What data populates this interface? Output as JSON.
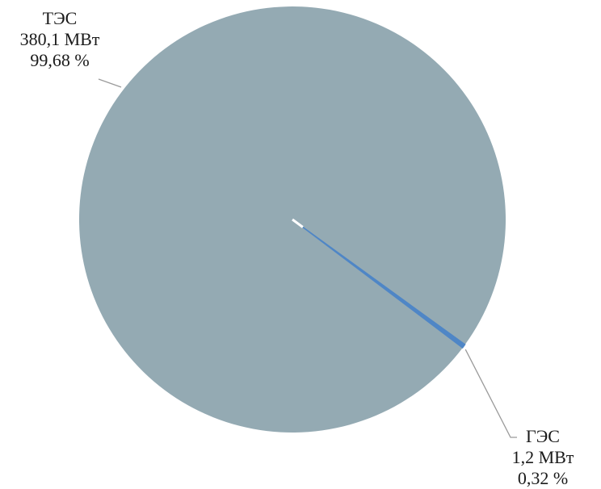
{
  "chart_data": {
    "type": "pie",
    "title": "",
    "slices": [
      {
        "name": "ТЭС",
        "value_label": "380,1 МВт",
        "percent_label": "99,68 %",
        "value": 380.1,
        "percent": 99.68,
        "color": "#94aab3"
      },
      {
        "name": "ГЭС",
        "value_label": "1,2 МВт",
        "percent_label": "0,32 %",
        "value": 1.2,
        "percent": 0.32,
        "color": "#4f86c6"
      }
    ],
    "leader_line_color": "#9a9a9a"
  }
}
